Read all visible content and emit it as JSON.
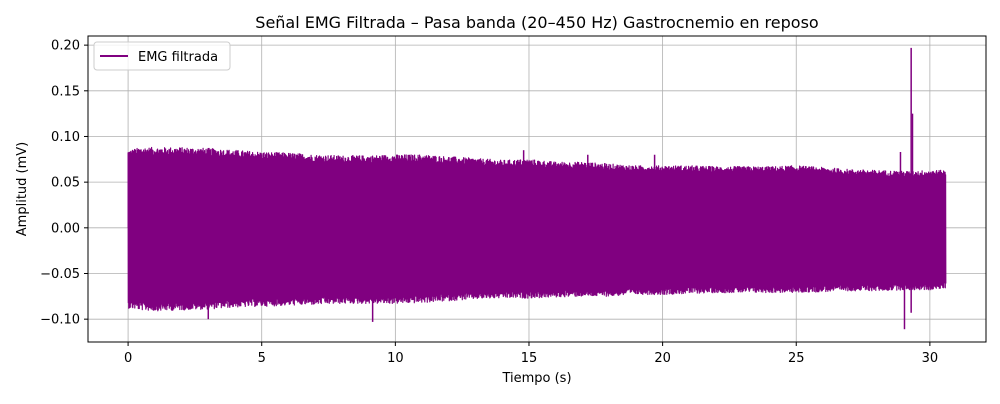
{
  "chart_data": {
    "type": "line",
    "title": "Señal EMG Filtrada – Pasa banda (20–450 Hz) Gastrocnemio en reposo",
    "xlabel": "Tiempo (s)",
    "ylabel": "Amplitud (mV)",
    "xlim": [
      -1.5,
      32.1
    ],
    "ylim": [
      -0.125,
      0.21
    ],
    "xticks": [
      0,
      5,
      10,
      15,
      20,
      25,
      30
    ],
    "xtick_labels": [
      "0",
      "5",
      "10",
      "15",
      "20",
      "25",
      "30"
    ],
    "yticks": [
      -0.1,
      -0.05,
      0.0,
      0.05,
      0.1,
      0.15,
      0.2
    ],
    "ytick_labels": [
      "−0.10",
      "−0.05",
      "0.00",
      "0.05",
      "0.10",
      "0.15",
      "0.20"
    ],
    "grid": true,
    "legend_position": "upper-left",
    "series": [
      {
        "name": "EMG filtrada",
        "color": "#800080",
        "x_range": [
          0,
          30.6
        ],
        "envelope": {
          "x": [
            0,
            0.5,
            1,
            2,
            3,
            4,
            5,
            6,
            7,
            8,
            9,
            10,
            11,
            12,
            13,
            14,
            15,
            16,
            17,
            18,
            19,
            20,
            21,
            22,
            23,
            24,
            25,
            26,
            27,
            28,
            29,
            29.3,
            30,
            30.6
          ],
          "upper": [
            0.085,
            0.088,
            0.088,
            0.088,
            0.087,
            0.085,
            0.083,
            0.082,
            0.08,
            0.079,
            0.079,
            0.08,
            0.08,
            0.078,
            0.076,
            0.074,
            0.075,
            0.072,
            0.072,
            0.07,
            0.068,
            0.068,
            0.068,
            0.067,
            0.067,
            0.067,
            0.068,
            0.066,
            0.064,
            0.063,
            0.062,
            0.062,
            0.063,
            0.063
          ],
          "lower": [
            -0.088,
            -0.09,
            -0.091,
            -0.09,
            -0.089,
            -0.087,
            -0.086,
            -0.085,
            -0.084,
            -0.083,
            -0.083,
            -0.083,
            -0.082,
            -0.08,
            -0.078,
            -0.077,
            -0.077,
            -0.076,
            -0.075,
            -0.075,
            -0.073,
            -0.073,
            -0.072,
            -0.071,
            -0.071,
            -0.071,
            -0.071,
            -0.07,
            -0.069,
            -0.069,
            -0.068,
            -0.068,
            -0.068,
            -0.066
          ]
        },
        "spikes": [
          {
            "x": 3.0,
            "y": -0.1
          },
          {
            "x": 9.15,
            "y": -0.103
          },
          {
            "x": 14.8,
            "y": 0.085
          },
          {
            "x": 17.2,
            "y": 0.08
          },
          {
            "x": 19.7,
            "y": 0.08
          },
          {
            "x": 28.9,
            "y": 0.083
          },
          {
            "x": 29.05,
            "y": -0.111
          },
          {
            "x": 29.3,
            "y": 0.197
          },
          {
            "x": 29.35,
            "y": 0.125
          },
          {
            "x": 29.3,
            "y": -0.093
          }
        ]
      }
    ]
  }
}
